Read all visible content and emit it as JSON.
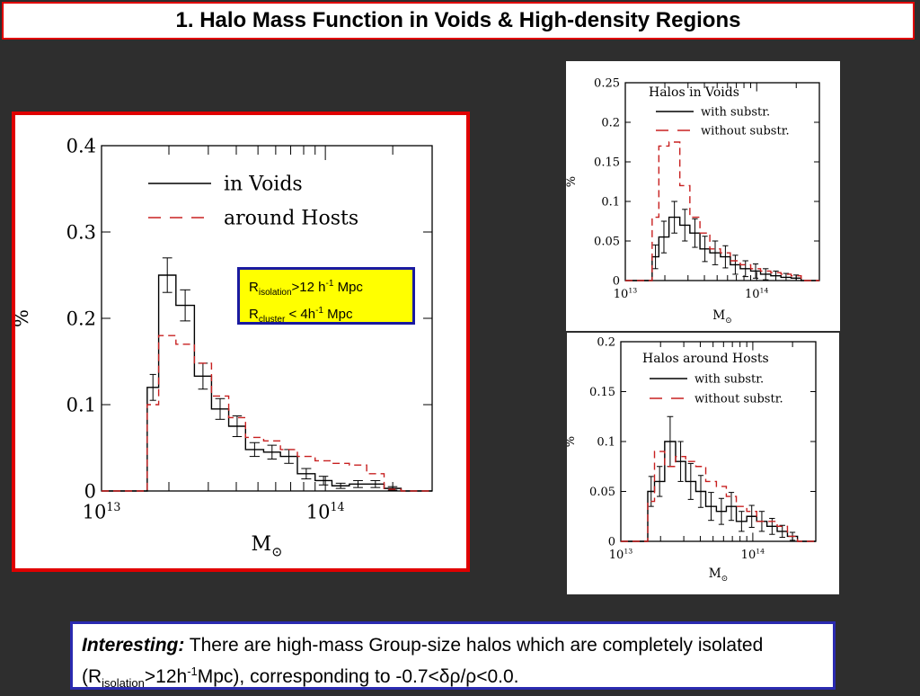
{
  "title": "1.    Halo Mass Function in Voids & High-density Regions",
  "callout": {
    "line1_main": "R",
    "line1_sub": "isolation",
    "line1_mid": ">12 h",
    "line1_sup": "-1",
    "line1_end": " Mpc",
    "line2_main": "R",
    "line2_sub": "cluster",
    "line2_mid": " < 4h",
    "line2_sup": "-1",
    "line2_end": " Mpc"
  },
  "note": {
    "lead": "Interesting:",
    "text1": " There are high-mass Group-size halos which are completely isolated (R",
    "sub": "isolation",
    "text2": ">12h",
    "sup": "-1",
    "text3": "Mpc), corresponding to -0.7<δρ/ρ<0.0."
  },
  "colors": {
    "frame_red": "#e00000",
    "series_black": "#000000",
    "series_red": "#c82020",
    "callout_bg": "#ffff00",
    "note_border": "#2a2ab0",
    "background": "#2e2e2e"
  },
  "chart_data": [
    {
      "type": "histogram",
      "panel": "main",
      "xscale": "log",
      "xlim": [
        10000000000000.0,
        300000000000000.0
      ],
      "ylim": [
        0,
        0.4
      ],
      "xticks": [
        "10^13",
        "10^14"
      ],
      "yticks": [
        "0",
        "0.1",
        "0.2",
        "0.3",
        "0.4"
      ],
      "xlabel": "M⊙",
      "ylabel": "%",
      "bin_edges": [
        10000000000000.0,
        16000000000000.0,
        18000000000000.0,
        21500000000000.0,
        26000000000000.0,
        31000000000000.0,
        37000000000000.0,
        44000000000000.0,
        53000000000000.0,
        63000000000000.0,
        75000000000000.0,
        90000000000000.0,
        107000000000000.0,
        128000000000000.0,
        153000000000000.0,
        183000000000000.0,
        218000000000000.0,
        300000000000000.0
      ],
      "series": [
        {
          "name": "in Voids",
          "style": "solid",
          "color": "#000000",
          "values": [
            0,
            0.12,
            0.25,
            0.215,
            0.133,
            0.095,
            0.075,
            0.048,
            0.045,
            0.04,
            0.02,
            0.012,
            0.006,
            0.008,
            0.008,
            0.003,
            0
          ],
          "errors": [
            0,
            0.015,
            0.02,
            0.018,
            0.015,
            0.012,
            0.012,
            0.008,
            0.008,
            0.008,
            0.006,
            0.005,
            0.003,
            0.004,
            0.004,
            0.002,
            0
          ]
        },
        {
          "name": "around Hosts",
          "style": "dashed",
          "color": "#c82020",
          "values": [
            0,
            0.1,
            0.18,
            0.17,
            0.148,
            0.11,
            0.085,
            0.062,
            0.058,
            0.048,
            0.04,
            0.035,
            0.032,
            0.03,
            0.02,
            0.002,
            0
          ]
        }
      ]
    },
    {
      "type": "histogram",
      "panel": "top-right",
      "title": "Halos in Voids",
      "xscale": "log",
      "xlim": [
        10000000000000.0,
        300000000000000.0
      ],
      "ylim": [
        0,
        0.25
      ],
      "xticks": [
        "10^13",
        "10^14"
      ],
      "yticks": [
        "0",
        "0.05",
        "0.1",
        "0.15",
        "0.2",
        "0.25"
      ],
      "xlabel": "M⊙",
      "ylabel": "%",
      "bin_edges": [
        10000000000000.0,
        16000000000000.0,
        18000000000000.0,
        21500000000000.0,
        26000000000000.0,
        31000000000000.0,
        37000000000000.0,
        44000000000000.0,
        53000000000000.0,
        63000000000000.0,
        75000000000000.0,
        90000000000000.0,
        107000000000000.0,
        128000000000000.0,
        153000000000000.0,
        183000000000000.0,
        218000000000000.0,
        300000000000000.0
      ],
      "series": [
        {
          "name": "with substr.",
          "style": "solid",
          "color": "#000000",
          "values": [
            0,
            0.03,
            0.055,
            0.08,
            0.07,
            0.06,
            0.04,
            0.035,
            0.03,
            0.02,
            0.015,
            0.012,
            0.008,
            0.006,
            0.004,
            0.003,
            0
          ],
          "errors": [
            0,
            0.015,
            0.02,
            0.02,
            0.02,
            0.018,
            0.016,
            0.015,
            0.014,
            0.012,
            0.01,
            0.009,
            0.007,
            0.006,
            0.005,
            0.004,
            0
          ]
        },
        {
          "name": "without substr.",
          "style": "dashed",
          "color": "#c82020",
          "values": [
            0,
            0.08,
            0.17,
            0.175,
            0.12,
            0.08,
            0.06,
            0.04,
            0.035,
            0.025,
            0.02,
            0.015,
            0.012,
            0.01,
            0.008,
            0.006,
            0
          ]
        }
      ]
    },
    {
      "type": "histogram",
      "panel": "bottom-right",
      "title": "Halos around Hosts",
      "xscale": "log",
      "xlim": [
        10000000000000.0,
        300000000000000.0
      ],
      "ylim": [
        0,
        0.2
      ],
      "xticks": [
        "10^13",
        "10^14"
      ],
      "yticks": [
        "0",
        "0.05",
        "0.1",
        "0.15",
        "0.2"
      ],
      "xlabel": "M⊙",
      "ylabel": "%",
      "bin_edges": [
        10000000000000.0,
        16000000000000.0,
        18000000000000.0,
        21500000000000.0,
        26000000000000.0,
        31000000000000.0,
        37000000000000.0,
        44000000000000.0,
        53000000000000.0,
        63000000000000.0,
        75000000000000.0,
        90000000000000.0,
        107000000000000.0,
        128000000000000.0,
        153000000000000.0,
        183000000000000.0,
        218000000000000.0,
        300000000000000.0
      ],
      "series": [
        {
          "name": "with substr.",
          "style": "solid",
          "color": "#000000",
          "values": [
            0,
            0.05,
            0.06,
            0.1,
            0.08,
            0.06,
            0.05,
            0.035,
            0.03,
            0.035,
            0.02,
            0.025,
            0.02,
            0.015,
            0.01,
            0.005,
            0
          ],
          "errors": [
            0,
            0.015,
            0.015,
            0.025,
            0.02,
            0.018,
            0.016,
            0.014,
            0.013,
            0.014,
            0.01,
            0.011,
            0.01,
            0.008,
            0.006,
            0.004,
            0
          ]
        },
        {
          "name": "without substr.",
          "style": "dashed",
          "color": "#c82020",
          "values": [
            0,
            0.04,
            0.09,
            0.075,
            0.085,
            0.08,
            0.075,
            0.06,
            0.055,
            0.045,
            0.035,
            0.03,
            0.02,
            0.02,
            0.015,
            0.005,
            0
          ]
        }
      ]
    }
  ]
}
